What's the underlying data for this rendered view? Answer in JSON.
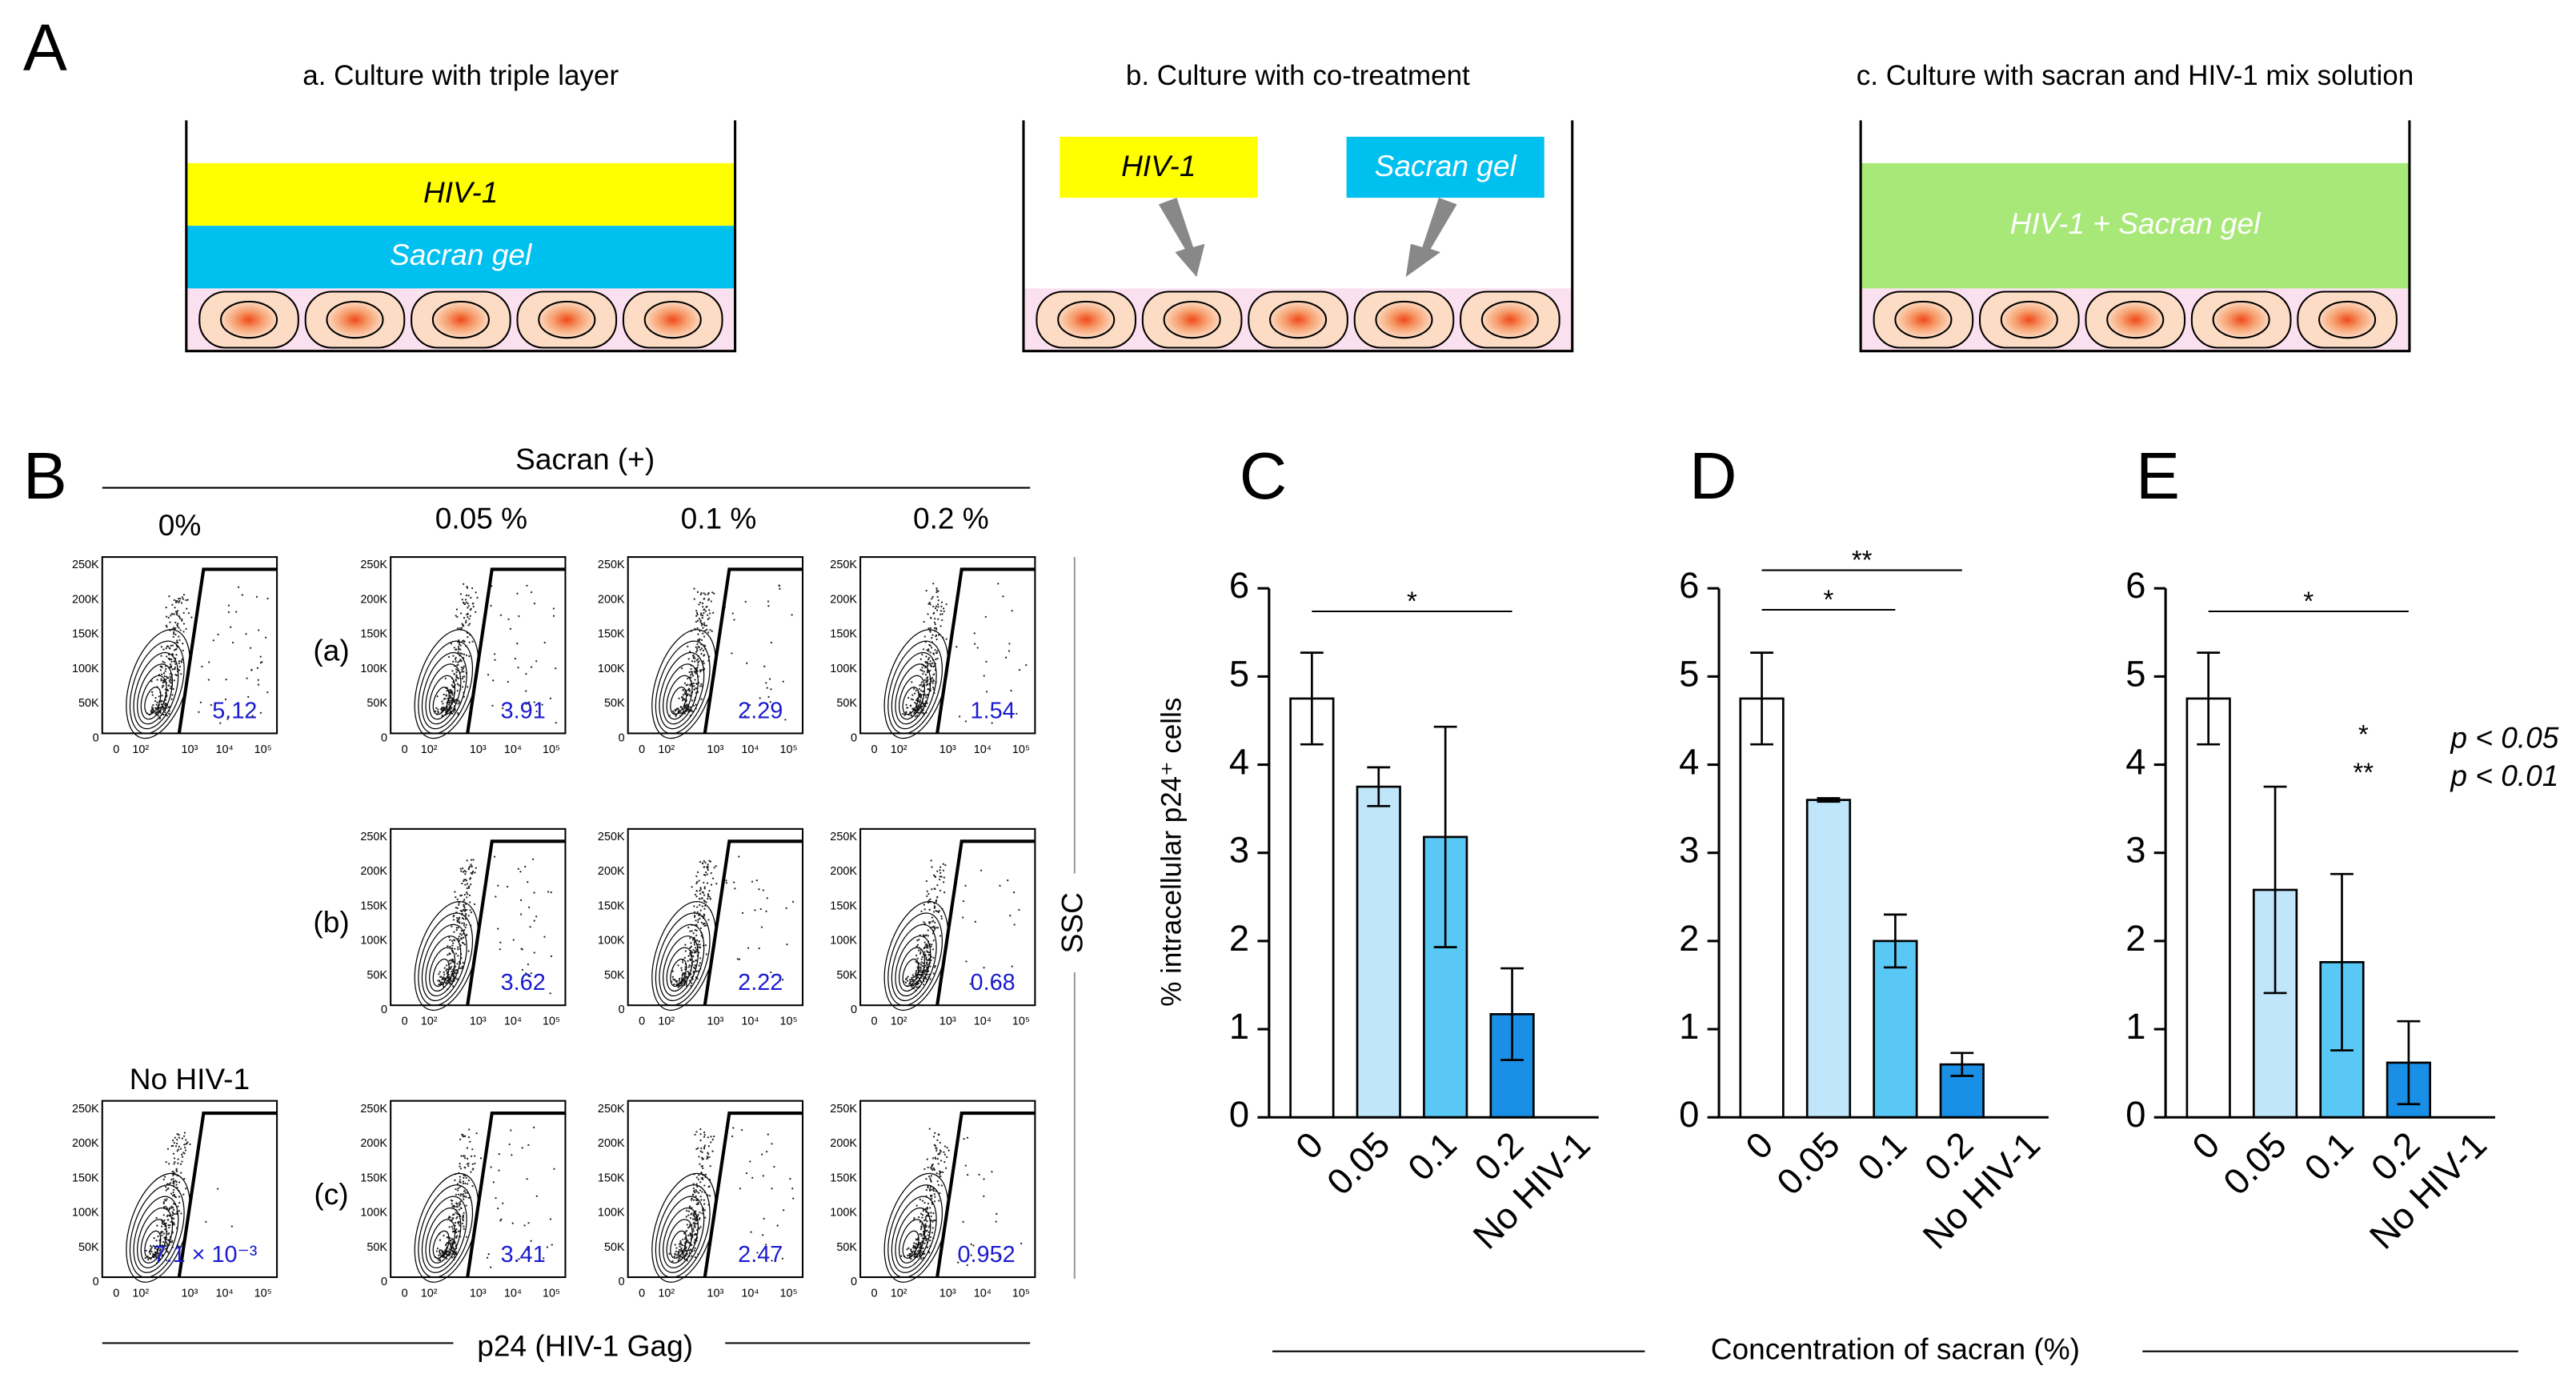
{
  "panel_a": {
    "label": "A",
    "wells": [
      {
        "title": "a. Culture with triple layer",
        "layers": [
          "HIV-1",
          "Sacran gel"
        ]
      },
      {
        "title": "b. Culture with co-treatment",
        "layers": [
          "HIV-1",
          "Sacran gel"
        ]
      },
      {
        "title": "c. Culture with sacran and HIV-1 mix solution",
        "layers": [
          "HIV-1 + Sacran gel"
        ]
      }
    ]
  },
  "panel_b": {
    "label": "B",
    "header": "Sacran (+)",
    "control_column": "0%",
    "columns": [
      "0.05 %",
      "0.1 %",
      "0.2 %"
    ],
    "rows": [
      "(a)",
      "(b)",
      "(c)"
    ],
    "control_value": 5.12,
    "values": [
      [
        3.91,
        2.29,
        1.54
      ],
      [
        3.62,
        2.22,
        0.68
      ],
      [
        3.41,
        2.47,
        0.952
      ]
    ],
    "no_hiv_label": "No HIV-1",
    "no_hiv_value": "7.1 × 10⁻³",
    "y_axis_label": "SSC",
    "x_axis_label": "p24 (HIV-1 Gag)",
    "plot_yticks": [
      "250K",
      "200K",
      "150K",
      "100K",
      "50K",
      "0"
    ],
    "plot_xticks": [
      "0",
      "10²",
      "10³",
      "10⁴",
      "10⁵"
    ]
  },
  "x_axis_label": "Concentration of sacran (%)",
  "chart_data": [
    {
      "type": "bar",
      "label": "C",
      "y_label": "% intracellular p24⁺ cells",
      "categories": [
        "0",
        "0.05",
        "0.1",
        "0.2",
        "No HIV-1"
      ],
      "values": [
        4.75,
        3.75,
        3.18,
        1.17,
        null
      ],
      "errors": [
        0.52,
        0.22,
        1.25,
        0.52,
        null
      ],
      "colors": [
        "#ffffff",
        "#bfe6fa",
        "#5ac8f5",
        "#1a8fe6",
        null
      ],
      "ylim": [
        0,
        6
      ],
      "yticks": [
        0,
        1,
        2,
        3,
        4,
        5,
        6
      ],
      "annotations": [
        "*"
      ]
    },
    {
      "type": "bar",
      "label": "D",
      "categories": [
        "0",
        "0.05",
        "0.1",
        "0.2",
        "No HIV-1"
      ],
      "values": [
        4.75,
        3.6,
        2.0,
        0.6,
        null
      ],
      "errors": [
        0.52,
        0.02,
        0.3,
        0.13,
        null
      ],
      "colors": [
        "#ffffff",
        "#bfe6fa",
        "#5ac8f5",
        "#1a8fe6",
        null
      ],
      "ylim": [
        0,
        6
      ],
      "yticks": [
        0,
        1,
        2,
        3,
        4,
        5,
        6
      ],
      "annotations": [
        "**",
        "*"
      ]
    },
    {
      "type": "bar",
      "label": "E",
      "categories": [
        "0",
        "0.05",
        "0.1",
        "0.2",
        "No HIV-1"
      ],
      "values": [
        4.75,
        2.58,
        1.76,
        0.62,
        null
      ],
      "errors": [
        0.52,
        1.17,
        1.0,
        0.47,
        null
      ],
      "colors": [
        "#ffffff",
        "#bfe6fa",
        "#5ac8f5",
        "#1a8fe6",
        null
      ],
      "ylim": [
        0,
        6
      ],
      "yticks": [
        0,
        1,
        2,
        3,
        4,
        5,
        6
      ],
      "annotations": [
        "*"
      ],
      "significance_legend": [
        {
          "symbol": "*",
          "text": "p < 0.05"
        },
        {
          "symbol": "**",
          "text": "p < 0.01"
        }
      ]
    }
  ]
}
